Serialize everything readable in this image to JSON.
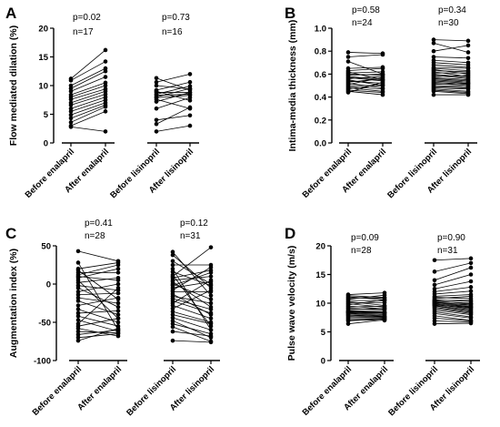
{
  "chart_data": [
    {
      "panel": "A",
      "type": "scatter",
      "ylabel": "Flow mediated dilation (%)",
      "ylim": [
        0,
        20
      ],
      "yticks": [
        0,
        5,
        10,
        15,
        20
      ],
      "categories": [
        "Before enalapril",
        "After enalapril",
        "Before lisinopril",
        "After lisinopril"
      ],
      "groups": [
        {
          "p": "p=0.02",
          "n": "n=17",
          "pairs": [
            [
              11.2,
              16.2
            ],
            [
              10.9,
              14.2
            ],
            [
              10.0,
              13.0
            ],
            [
              9.5,
              12.5
            ],
            [
              9.0,
              11.5
            ],
            [
              8.4,
              10.5
            ],
            [
              8.0,
              10.0
            ],
            [
              7.6,
              9.4
            ],
            [
              7.0,
              9.0
            ],
            [
              6.6,
              8.5
            ],
            [
              6.0,
              8.0
            ],
            [
              5.5,
              7.5
            ],
            [
              4.9,
              7.0
            ],
            [
              4.3,
              6.6
            ],
            [
              3.6,
              6.3
            ],
            [
              3.0,
              5.5
            ],
            [
              2.8,
              2.0
            ]
          ]
        },
        {
          "p": "p=0.73",
          "n": "n=16",
          "pairs": [
            [
              11.3,
              9.2
            ],
            [
              10.6,
              12.0
            ],
            [
              9.2,
              10.6
            ],
            [
              8.8,
              8.8
            ],
            [
              8.5,
              9.9
            ],
            [
              8.0,
              9.5
            ],
            [
              7.9,
              8.3
            ],
            [
              7.6,
              6.0
            ],
            [
              7.2,
              8.8
            ],
            [
              6.0,
              7.9
            ],
            [
              4.0,
              4.8
            ],
            [
              3.3,
              6.2
            ],
            [
              2.0,
              3.0
            ],
            [
              8.3,
              8.5
            ],
            [
              9.0,
              7.4
            ],
            [
              10.0,
              9.4
            ]
          ]
        }
      ]
    },
    {
      "panel": "B",
      "type": "scatter",
      "ylabel": "Intima-media thickness (mm)",
      "ylim": [
        0,
        1.0
      ],
      "yticks": [
        0.0,
        0.2,
        0.4,
        0.6,
        0.8,
        1.0
      ],
      "categories": [
        "Before enalapril",
        "After enalapril",
        "Before lisinopril",
        "After lisinopril"
      ],
      "groups": [
        {
          "p": "p=0.58",
          "n": "n=24",
          "pairs": [
            [
              0.79,
              0.78
            ],
            [
              0.75,
              0.77
            ],
            [
              0.71,
              0.6
            ],
            [
              0.65,
              0.66
            ],
            [
              0.63,
              0.65
            ],
            [
              0.62,
              0.55
            ],
            [
              0.61,
              0.62
            ],
            [
              0.6,
              0.59
            ],
            [
              0.59,
              0.6
            ],
            [
              0.58,
              0.55
            ],
            [
              0.57,
              0.54
            ],
            [
              0.56,
              0.58
            ],
            [
              0.55,
              0.5
            ],
            [
              0.54,
              0.52
            ],
            [
              0.53,
              0.56
            ],
            [
              0.52,
              0.48
            ],
            [
              0.51,
              0.57
            ],
            [
              0.5,
              0.5
            ],
            [
              0.49,
              0.47
            ],
            [
              0.48,
              0.45
            ],
            [
              0.47,
              0.51
            ],
            [
              0.46,
              0.44
            ],
            [
              0.45,
              0.42
            ],
            [
              0.44,
              0.53
            ]
          ]
        },
        {
          "p": "p=0.34",
          "n": "n=30",
          "pairs": [
            [
              0.9,
              0.89
            ],
            [
              0.87,
              0.79
            ],
            [
              0.8,
              0.85
            ],
            [
              0.75,
              0.74
            ],
            [
              0.72,
              0.7
            ],
            [
              0.7,
              0.68
            ],
            [
              0.68,
              0.66
            ],
            [
              0.66,
              0.65
            ],
            [
              0.65,
              0.63
            ],
            [
              0.64,
              0.6
            ],
            [
              0.63,
              0.62
            ],
            [
              0.62,
              0.58
            ],
            [
              0.61,
              0.61
            ],
            [
              0.6,
              0.57
            ],
            [
              0.59,
              0.56
            ],
            [
              0.58,
              0.59
            ],
            [
              0.57,
              0.55
            ],
            [
              0.56,
              0.54
            ],
            [
              0.55,
              0.53
            ],
            [
              0.54,
              0.52
            ],
            [
              0.53,
              0.51
            ],
            [
              0.52,
              0.5
            ],
            [
              0.51,
              0.52
            ],
            [
              0.5,
              0.49
            ],
            [
              0.49,
              0.48
            ],
            [
              0.48,
              0.47
            ],
            [
              0.47,
              0.45
            ],
            [
              0.46,
              0.44
            ],
            [
              0.45,
              0.43
            ],
            [
              0.42,
              0.42
            ]
          ]
        }
      ]
    },
    {
      "panel": "C",
      "type": "scatter",
      "ylabel": "Augmentation index (%)",
      "ylim": [
        -100,
        50
      ],
      "yticks": [
        -100,
        -50,
        0,
        50
      ],
      "categories": [
        "Before enalapril",
        "After enalapril",
        "Before lisinopril",
        "After lisinopril"
      ],
      "groups": [
        {
          "p": "p=0.41",
          "n": "n=28",
          "pairs": [
            [
              43,
              30
            ],
            [
              28,
              -60
            ],
            [
              20,
              28
            ],
            [
              18,
              -20
            ],
            [
              15,
              15
            ],
            [
              12,
              25
            ],
            [
              10,
              5
            ],
            [
              8,
              20
            ],
            [
              5,
              -45
            ],
            [
              2,
              8
            ],
            [
              -2,
              -8
            ],
            [
              -5,
              -30
            ],
            [
              -10,
              0
            ],
            [
              -14,
              -12
            ],
            [
              -18,
              -25
            ],
            [
              -22,
              -40
            ],
            [
              -28,
              -18
            ],
            [
              -33,
              -50
            ],
            [
              -38,
              -35
            ],
            [
              -42,
              -55
            ],
            [
              -47,
              -62
            ],
            [
              -52,
              -5
            ],
            [
              -55,
              -45
            ],
            [
              -58,
              -68
            ],
            [
              -62,
              -64
            ],
            [
              -66,
              -60
            ],
            [
              -70,
              -65
            ],
            [
              -74,
              -58
            ]
          ]
        },
        {
          "p": "p=0.12",
          "n": "n=31",
          "pairs": [
            [
              42,
              -15
            ],
            [
              38,
              -5
            ],
            [
              30,
              0
            ],
            [
              25,
              25
            ],
            [
              20,
              -60
            ],
            [
              16,
              -2
            ],
            [
              12,
              -55
            ],
            [
              10,
              48
            ],
            [
              8,
              18
            ],
            [
              5,
              10
            ],
            [
              3,
              -30
            ],
            [
              0,
              -20
            ],
            [
              -2,
              15
            ],
            [
              -5,
              3
            ],
            [
              -8,
              22
            ],
            [
              -10,
              -10
            ],
            [
              -13,
              -40
            ],
            [
              -16,
              -25
            ],
            [
              -19,
              -33
            ],
            [
              -22,
              -38
            ],
            [
              -25,
              5
            ],
            [
              -28,
              -45
            ],
            [
              -32,
              -8
            ],
            [
              -36,
              -50
            ],
            [
              -40,
              -52
            ],
            [
              -44,
              -60
            ],
            [
              -48,
              -70
            ],
            [
              -52,
              -65
            ],
            [
              -56,
              -75
            ],
            [
              -62,
              -68
            ],
            [
              -74,
              -76
            ]
          ]
        }
      ]
    },
    {
      "panel": "D",
      "type": "scatter",
      "ylabel": "Pulse wave velocity (m/s)",
      "ylim": [
        0,
        20
      ],
      "yticks": [
        0,
        5,
        10,
        15,
        20
      ],
      "categories": [
        "Before enalapril",
        "After enalapril",
        "Before lisinopril",
        "After lisinopril"
      ],
      "groups": [
        {
          "p": "p=0.09",
          "n": "n=28",
          "pairs": [
            [
              11.5,
              11.8
            ],
            [
              11.3,
              11.0
            ],
            [
              11.1,
              10.6
            ],
            [
              10.9,
              10.9
            ],
            [
              10.7,
              11.4
            ],
            [
              10.5,
              10.4
            ],
            [
              10.3,
              9.6
            ],
            [
              10.1,
              10.1
            ],
            [
              9.9,
              9.3
            ],
            [
              9.7,
              10.6
            ],
            [
              9.5,
              9.0
            ],
            [
              9.3,
              9.5
            ],
            [
              9.1,
              8.8
            ],
            [
              8.9,
              9.1
            ],
            [
              8.7,
              8.5
            ],
            [
              8.6,
              8.4
            ],
            [
              8.5,
              8.3
            ],
            [
              8.4,
              8.2
            ],
            [
              8.3,
              8.0
            ],
            [
              8.2,
              7.8
            ],
            [
              8.0,
              7.7
            ],
            [
              7.9,
              7.6
            ],
            [
              7.7,
              7.5
            ],
            [
              7.5,
              7.4
            ],
            [
              7.3,
              7.2
            ],
            [
              7.1,
              7.0
            ],
            [
              6.9,
              7.3
            ],
            [
              6.4,
              7.1
            ]
          ]
        },
        {
          "p": "p=0.90",
          "n": "n=31",
          "pairs": [
            [
              17.5,
              17.8
            ],
            [
              15.5,
              17.0
            ],
            [
              14.0,
              16.2
            ],
            [
              13.2,
              15.0
            ],
            [
              12.5,
              13.8
            ],
            [
              12.0,
              12.8
            ],
            [
              11.6,
              12.1
            ],
            [
              11.2,
              11.5
            ],
            [
              11.0,
              10.8
            ],
            [
              10.8,
              11.2
            ],
            [
              10.6,
              10.3
            ],
            [
              10.5,
              10.5
            ],
            [
              10.4,
              9.9
            ],
            [
              10.3,
              10.0
            ],
            [
              10.2,
              9.6
            ],
            [
              10.1,
              9.4
            ],
            [
              10.0,
              9.8
            ],
            [
              9.9,
              9.3
            ],
            [
              9.8,
              9.0
            ],
            [
              9.7,
              9.2
            ],
            [
              9.6,
              8.8
            ],
            [
              9.5,
              8.6
            ],
            [
              9.3,
              8.4
            ],
            [
              9.1,
              8.2
            ],
            [
              8.8,
              8.0
            ],
            [
              8.5,
              7.6
            ],
            [
              8.2,
              7.4
            ],
            [
              7.8,
              7.0
            ],
            [
              7.4,
              6.9
            ],
            [
              6.9,
              6.7
            ],
            [
              6.4,
              6.5
            ]
          ]
        }
      ]
    }
  ]
}
